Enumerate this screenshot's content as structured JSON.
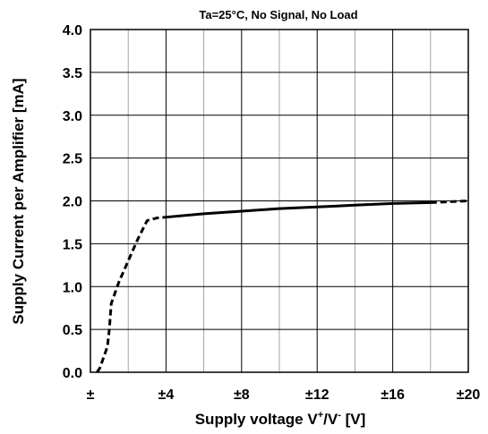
{
  "chart_data": {
    "type": "line",
    "title": "Ta=25°C, No Signal, No Load",
    "xlabel_parts": {
      "base": "Supply voltage V",
      "sup1": "+",
      "mid": "/V",
      "sup2": "-",
      "unit": " [V]"
    },
    "ylabel": "Supply Current per Amplifier [mA]",
    "xlim": [
      0,
      20
    ],
    "ylim": [
      0,
      4
    ],
    "grid": true,
    "legend": "none",
    "x_ticks": [
      {
        "value": 0,
        "label": "±"
      },
      {
        "value": 4,
        "label": "±4"
      },
      {
        "value": 8,
        "label": "±8"
      },
      {
        "value": 12,
        "label": "±12"
      },
      {
        "value": 16,
        "label": "±16"
      },
      {
        "value": 20,
        "label": "±20"
      }
    ],
    "y_ticks": [
      {
        "value": 0.0,
        "label": "0.0"
      },
      {
        "value": 0.5,
        "label": "0.5"
      },
      {
        "value": 1.0,
        "label": "1.0"
      },
      {
        "value": 1.5,
        "label": "1.5"
      },
      {
        "value": 2.0,
        "label": "2.0"
      },
      {
        "value": 2.5,
        "label": "2.5"
      },
      {
        "value": 3.0,
        "label": "3.0"
      },
      {
        "value": 3.5,
        "label": "3.5"
      },
      {
        "value": 4.0,
        "label": "4.0"
      }
    ],
    "series": [
      {
        "style": "dashed",
        "color": "#000000",
        "points": [
          [
            0.35,
            0.0
          ],
          [
            0.5,
            0.05
          ],
          [
            0.9,
            0.3
          ],
          [
            1.0,
            0.5
          ],
          [
            1.1,
            0.8
          ],
          [
            1.5,
            1.05
          ],
          [
            2.0,
            1.3
          ],
          [
            2.5,
            1.55
          ],
          [
            3.0,
            1.77
          ],
          [
            3.5,
            1.8
          ],
          [
            4.0,
            1.81
          ]
        ]
      },
      {
        "style": "solid",
        "color": "#000000",
        "points": [
          [
            4.0,
            1.81
          ],
          [
            6.0,
            1.85
          ],
          [
            8.0,
            1.88
          ],
          [
            10.0,
            1.91
          ],
          [
            12.0,
            1.93
          ],
          [
            14.0,
            1.95
          ],
          [
            16.0,
            1.97
          ],
          [
            18.0,
            1.98
          ]
        ]
      },
      {
        "style": "dashed",
        "color": "#000000",
        "points": [
          [
            18.0,
            1.98
          ],
          [
            20.0,
            2.0
          ]
        ]
      }
    ]
  }
}
